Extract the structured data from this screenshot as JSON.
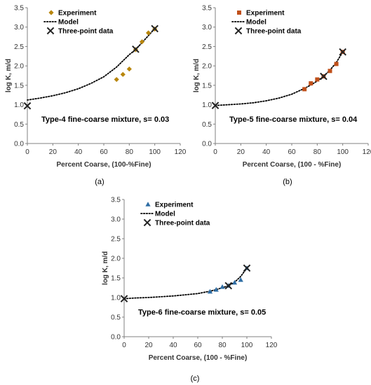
{
  "colors": {
    "axis": "#808080",
    "text": "#333333",
    "model": "#000000",
    "three_point": "#222222"
  },
  "chart_data": [
    {
      "type": "scatter",
      "caption": "(a)",
      "annotation": "Type-4 fine-coarse mixture, s= 0.03",
      "xlabel": "Percent Coarse, (100-%Fine)",
      "ylabel": "log K, m/d",
      "xlim": [
        0,
        120
      ],
      "ylim": [
        0,
        3.5
      ],
      "xticks": [
        "0",
        "20",
        "40",
        "60",
        "80",
        "100",
        "120"
      ],
      "yticks": [
        "0.0",
        "0.5",
        "1.0",
        "1.5",
        "2.0",
        "2.5",
        "3.0",
        "3.5"
      ],
      "legend": {
        "position": "top-left",
        "entries": [
          "Experiment",
          "Model",
          "Three-point data"
        ]
      },
      "series": [
        {
          "name": "Experiment",
          "marker": "diamond",
          "color": "#b8860b",
          "x": [
            70,
            75,
            80,
            85,
            90,
            95,
            100
          ],
          "y": [
            1.65,
            1.78,
            1.92,
            2.42,
            2.62,
            2.85,
            2.95
          ]
        },
        {
          "name": "Model",
          "style": "dotted",
          "x": [
            0,
            10,
            20,
            30,
            40,
            50,
            60,
            70,
            75,
            80,
            85,
            90,
            95,
            100
          ],
          "y": [
            1.12,
            1.17,
            1.23,
            1.31,
            1.41,
            1.55,
            1.72,
            1.97,
            2.13,
            2.29,
            2.42,
            2.6,
            2.78,
            2.96
          ]
        },
        {
          "name": "Three-point data",
          "marker": "x",
          "x": [
            0,
            85,
            100
          ],
          "y": [
            0.97,
            2.43,
            2.96
          ]
        }
      ]
    },
    {
      "type": "scatter",
      "caption": "(b)",
      "annotation": "Type-5 fine-coarse mixture, s= 0.04",
      "xlabel": "Percent Coarse, (100 - %Fine)",
      "ylabel": "log K, m/d",
      "xlim": [
        0,
        120
      ],
      "ylim": [
        0,
        3.5
      ],
      "xticks": [
        "0",
        "20",
        "40",
        "60",
        "80",
        "100",
        "120"
      ],
      "yticks": [
        "0.0",
        "0.5",
        "1.0",
        "1.5",
        "2.0",
        "2.5",
        "3.0",
        "3.5"
      ],
      "legend": {
        "position": "top-left",
        "entries": [
          "Experiment",
          "Model",
          "Three-point data"
        ]
      },
      "series": [
        {
          "name": "Experiment",
          "marker": "square",
          "color": "#c0501a",
          "x": [
            70,
            75,
            80,
            85,
            90,
            95,
            100
          ],
          "y": [
            1.4,
            1.55,
            1.65,
            1.73,
            1.87,
            2.05,
            2.36
          ]
        },
        {
          "name": "Model",
          "style": "dotted",
          "x": [
            0,
            10,
            20,
            30,
            40,
            50,
            60,
            70,
            75,
            80,
            85,
            90,
            95,
            100
          ],
          "y": [
            0.98,
            1.0,
            1.02,
            1.05,
            1.1,
            1.17,
            1.27,
            1.42,
            1.51,
            1.61,
            1.73,
            1.89,
            2.09,
            2.36
          ]
        },
        {
          "name": "Three-point data",
          "marker": "x",
          "x": [
            0,
            85,
            100
          ],
          "y": [
            0.98,
            1.73,
            2.36
          ]
        }
      ]
    },
    {
      "type": "scatter",
      "caption": "(c)",
      "annotation": "Type-6 fine-coarse mixture, s= 0.05",
      "xlabel": "Percent Coarse, (100 - %Fine)",
      "ylabel": "log K, m/d",
      "xlim": [
        0,
        120
      ],
      "ylim": [
        0,
        3.5
      ],
      "xticks": [
        "0",
        "20",
        "40",
        "60",
        "80",
        "100",
        "120"
      ],
      "yticks": [
        "0.0",
        "0.5",
        "1.0",
        "1.5",
        "2.0",
        "2.5",
        "3.0",
        "3.5"
      ],
      "legend": {
        "position": "top-left",
        "entries": [
          "Experiment",
          "Model",
          "Three-point data"
        ]
      },
      "series": [
        {
          "name": "Experiment",
          "marker": "triangle",
          "color": "#2e6da4",
          "x": [
            70,
            75,
            80,
            85,
            90,
            95,
            100
          ],
          "y": [
            1.15,
            1.2,
            1.27,
            1.3,
            1.38,
            1.45,
            1.75
          ]
        },
        {
          "name": "Model",
          "style": "dotted",
          "x": [
            0,
            10,
            20,
            30,
            40,
            50,
            60,
            70,
            75,
            80,
            85,
            90,
            95,
            100
          ],
          "y": [
            0.97,
            0.99,
            1.0,
            1.02,
            1.04,
            1.07,
            1.1,
            1.16,
            1.2,
            1.25,
            1.3,
            1.39,
            1.54,
            1.75
          ]
        },
        {
          "name": "Three-point data",
          "marker": "x",
          "x": [
            0,
            85,
            100
          ],
          "y": [
            0.97,
            1.3,
            1.75
          ]
        }
      ]
    }
  ]
}
